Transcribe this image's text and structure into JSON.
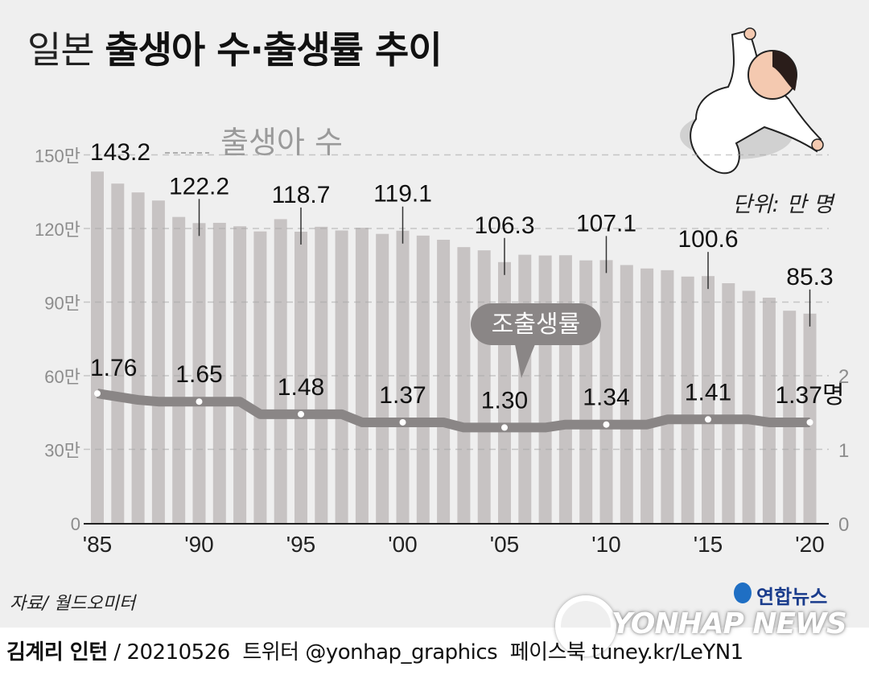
{
  "title": {
    "prefix": "일본",
    "main": "출생아 수·출생률 추이"
  },
  "unit_label": "단위: 만 명",
  "source": "자료/ 월드오미터",
  "footer": {
    "author": "김계리 인턴",
    "date": "/ 20210526",
    "twitter": "트위터 @yonhap_graphics",
    "facebook": "페이스북 tuney.kr/LeYN1"
  },
  "logo": {
    "korean": "연합뉴스",
    "watermark": "YONHAP NEWS"
  },
  "colors": {
    "bar": "#c7c3c3",
    "line": "#8a8686",
    "background": "#efefef",
    "text": "#111111",
    "axis_text": "#8c8c8c"
  },
  "chart_data": [
    {
      "type": "bar",
      "title": "출생아 수",
      "unit": "만 명",
      "x": [
        1985,
        1986,
        1987,
        1988,
        1989,
        1990,
        1991,
        1992,
        1993,
        1994,
        1995,
        1996,
        1997,
        1998,
        1999,
        2000,
        2001,
        2002,
        2003,
        2004,
        2005,
        2006,
        2007,
        2008,
        2009,
        2010,
        2011,
        2012,
        2013,
        2014,
        2015,
        2016,
        2017,
        2018,
        2019,
        2020
      ],
      "values": [
        143.2,
        138.3,
        134.7,
        131.4,
        124.7,
        122.2,
        122.3,
        120.9,
        118.8,
        123.8,
        118.7,
        120.7,
        119.2,
        120.3,
        117.8,
        119.1,
        117.1,
        115.4,
        112.4,
        111.1,
        106.3,
        109.3,
        109.0,
        109.1,
        107.0,
        107.1,
        105.1,
        103.7,
        103.0,
        100.4,
        100.6,
        97.7,
        94.6,
        91.8,
        86.5,
        85.3
      ],
      "labeled_points": [
        {
          "year": 1985,
          "label": "143.2"
        },
        {
          "year": 1990,
          "label": "122.2"
        },
        {
          "year": 1995,
          "label": "118.7"
        },
        {
          "year": 2000,
          "label": "119.1"
        },
        {
          "year": 2005,
          "label": "106.3"
        },
        {
          "year": 2010,
          "label": "107.1"
        },
        {
          "year": 2015,
          "label": "100.6"
        },
        {
          "year": 2020,
          "label": "85.3"
        }
      ],
      "y_ticks": [
        "0",
        "30만",
        "60만",
        "90만",
        "120만",
        "150만"
      ],
      "ylim": [
        0,
        150
      ]
    },
    {
      "type": "line",
      "title": "조출생률",
      "unit": "명",
      "x": [
        1985,
        1990,
        1995,
        2000,
        2005,
        2010,
        2015,
        2020
      ],
      "values": [
        1.76,
        1.65,
        1.48,
        1.37,
        1.3,
        1.34,
        1.41,
        1.37
      ],
      "labels": [
        "1.76",
        "1.65",
        "1.48",
        "1.37",
        "1.30",
        "1.34",
        "1.41",
        "1.37명"
      ],
      "y_ticks": [
        "0",
        "1",
        "2"
      ],
      "ylim": [
        0,
        2.0
      ]
    }
  ],
  "x_tick_labels": [
    "'85",
    "'90",
    "'95",
    "'00",
    "'05",
    "'10",
    "'15",
    "'20"
  ],
  "series_label_bar": "출생아 수",
  "series_label_line": "조출생률"
}
